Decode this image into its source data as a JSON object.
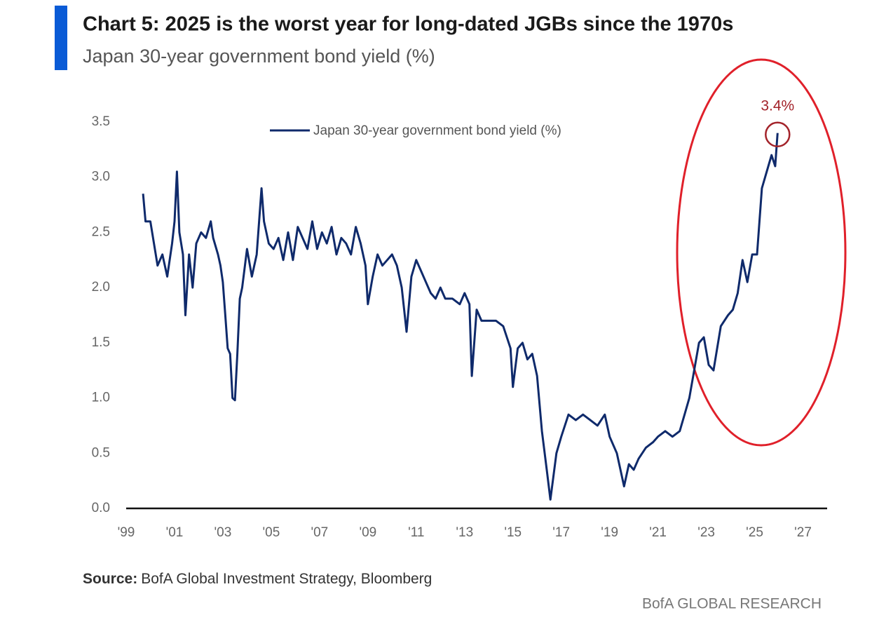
{
  "chart_data": {
    "type": "line",
    "title": "Chart 5: 2025 is the worst year for long-dated JGBs since the 1970s",
    "subtitle": "Japan 30-year government bond yield (%)",
    "source_label": "Source:",
    "source": "BofA Global Investment Strategy, Bloomberg",
    "branding": "BofA GLOBAL RESEARCH",
    "annotation": "3.4%",
    "legend": "top-center",
    "grid": false,
    "xlim": [
      1999,
      2028
    ],
    "xticks": [
      {
        "value": 1999,
        "label": "'99"
      },
      {
        "value": 2001,
        "label": "'01"
      },
      {
        "value": 2003,
        "label": "'03"
      },
      {
        "value": 2005,
        "label": "'05"
      },
      {
        "value": 2007,
        "label": "'07"
      },
      {
        "value": 2009,
        "label": "'09"
      },
      {
        "value": 2011,
        "label": "'11"
      },
      {
        "value": 2013,
        "label": "'13"
      },
      {
        "value": 2015,
        "label": "'15"
      },
      {
        "value": 2017,
        "label": "'17"
      },
      {
        "value": 2019,
        "label": "'19"
      },
      {
        "value": 2021,
        "label": "'21"
      },
      {
        "value": 2023,
        "label": "'23"
      },
      {
        "value": 2025,
        "label": "'25"
      },
      {
        "value": 2027,
        "label": "'27"
      }
    ],
    "ylim": [
      0,
      3.5
    ],
    "yticks": [
      {
        "value": 0,
        "label": "0.0"
      },
      0.5,
      {
        "value": 1,
        "label": "1.0"
      },
      1.5,
      {
        "value": 2,
        "label": "2.0"
      },
      2.5,
      {
        "value": 3,
        "label": "3.0"
      },
      3.5
    ],
    "x": [
      1999.7,
      1999.8,
      2000.0,
      2000.3,
      2000.5,
      2000.7,
      2000.9,
      2001.0,
      2001.1,
      2001.2,
      2001.35,
      2001.45,
      2001.6,
      2001.75,
      2001.9,
      2002.1,
      2002.3,
      2002.5,
      2002.6,
      2002.8,
      2002.9,
      2003.0,
      2003.1,
      2003.2,
      2003.3,
      2003.4,
      2003.5,
      2003.6,
      2003.7,
      2003.8,
      2004.0,
      2004.2,
      2004.4,
      2004.6,
      2004.7,
      2004.9,
      2005.1,
      2005.3,
      2005.5,
      2005.7,
      2005.9,
      2006.1,
      2006.3,
      2006.5,
      2006.7,
      2006.9,
      2007.1,
      2007.3,
      2007.5,
      2007.7,
      2007.9,
      2008.1,
      2008.3,
      2008.5,
      2008.7,
      2008.9,
      2009.0,
      2009.2,
      2009.4,
      2009.6,
      2009.8,
      2010.0,
      2010.2,
      2010.4,
      2010.6,
      2010.8,
      2011.0,
      2011.2,
      2011.4,
      2011.6,
      2011.8,
      2012.0,
      2012.2,
      2012.5,
      2012.8,
      2013.0,
      2013.2,
      2013.3,
      2013.5,
      2013.7,
      2014.0,
      2014.3,
      2014.6,
      2014.9,
      2015.0,
      2015.2,
      2015.4,
      2015.6,
      2015.8,
      2016.0,
      2016.2,
      2016.4,
      2016.55,
      2016.8,
      2017.0,
      2017.3,
      2017.6,
      2017.9,
      2018.2,
      2018.5,
      2018.8,
      2019.0,
      2019.3,
      2019.6,
      2019.8,
      2020.0,
      2020.2,
      2020.5,
      2020.8,
      2021.0,
      2021.3,
      2021.6,
      2021.9,
      2022.1,
      2022.3,
      2022.5,
      2022.7,
      2022.9,
      2023.1,
      2023.3,
      2023.6,
      2023.9,
      2024.1,
      2024.3,
      2024.5,
      2024.7,
      2024.9,
      2025.1,
      2025.3,
      2025.5,
      2025.7,
      2025.85,
      2025.95
    ],
    "series": [
      {
        "name": "Japan 30-year government bond yield (%)",
        "color": "#0f2a6b",
        "values": [
          2.85,
          2.6,
          2.6,
          2.2,
          2.3,
          2.1,
          2.4,
          2.6,
          3.05,
          2.5,
          2.3,
          1.75,
          2.3,
          2.0,
          2.4,
          2.5,
          2.45,
          2.6,
          2.45,
          2.3,
          2.2,
          2.05,
          1.75,
          1.45,
          1.4,
          1.0,
          0.98,
          1.4,
          1.9,
          2.0,
          2.35,
          2.1,
          2.3,
          2.9,
          2.6,
          2.4,
          2.35,
          2.45,
          2.25,
          2.5,
          2.25,
          2.55,
          2.45,
          2.35,
          2.6,
          2.35,
          2.5,
          2.4,
          2.55,
          2.3,
          2.45,
          2.4,
          2.3,
          2.55,
          2.4,
          2.2,
          1.85,
          2.1,
          2.3,
          2.2,
          2.25,
          2.3,
          2.2,
          2.0,
          1.6,
          2.1,
          2.25,
          2.15,
          2.05,
          1.95,
          1.9,
          2.0,
          1.9,
          1.9,
          1.85,
          1.95,
          1.85,
          1.2,
          1.8,
          1.7,
          1.7,
          1.7,
          1.65,
          1.45,
          1.1,
          1.45,
          1.5,
          1.35,
          1.4,
          1.2,
          0.7,
          0.35,
          0.08,
          0.5,
          0.65,
          0.85,
          0.8,
          0.85,
          0.8,
          0.75,
          0.85,
          0.65,
          0.5,
          0.2,
          0.4,
          0.35,
          0.45,
          0.55,
          0.6,
          0.65,
          0.7,
          0.65,
          0.7,
          0.85,
          1.0,
          1.25,
          1.5,
          1.55,
          1.3,
          1.25,
          1.65,
          1.75,
          1.8,
          1.95,
          2.25,
          2.05,
          2.3,
          2.3,
          2.9,
          3.05,
          3.2,
          3.1,
          3.4
        ]
      }
    ]
  }
}
